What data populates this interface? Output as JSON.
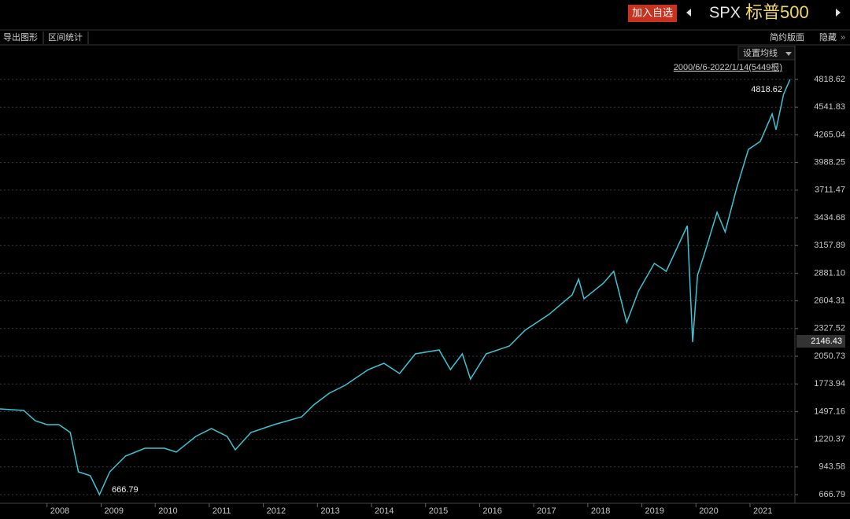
{
  "header": {
    "add_button": "加入自选",
    "symbol": "SPX",
    "name": "标普500"
  },
  "toolbar": {
    "left": [
      "导出图形",
      "区间统计"
    ],
    "right": [
      "简约版面",
      "隐藏"
    ]
  },
  "chart_data": {
    "type": "line",
    "ma_setting": "设置均线",
    "range_label": "2000/6/6-2022/1/14(5449根)",
    "max_label": "4818.62",
    "min_label": "666.79",
    "last_price_label": "2146.43",
    "series_color": "#38c6d6",
    "grid": true,
    "x": [
      2007.13,
      2007.57,
      2007.78,
      2008.0,
      2008.22,
      2008.43,
      2008.58,
      2008.8,
      2008.97,
      2009.16,
      2009.45,
      2009.81,
      2010.17,
      2010.39,
      2010.75,
      2011.04,
      2011.33,
      2011.48,
      2011.77,
      2012.2,
      2012.71,
      2012.93,
      2013.22,
      2013.51,
      2013.94,
      2014.23,
      2014.52,
      2014.81,
      2015.25,
      2015.46,
      2015.68,
      2015.83,
      2016.12,
      2016.55,
      2016.84,
      2017.28,
      2017.71,
      2017.83,
      2017.93,
      2018.29,
      2018.48,
      2018.72,
      2018.94,
      2019.23,
      2019.45,
      2019.84,
      2019.94,
      2020.03,
      2020.17,
      2020.39,
      2020.54,
      2020.75,
      2020.97,
      2021.19,
      2021.41,
      2021.48,
      2021.62,
      2021.74
    ],
    "values": [
      1524,
      1508,
      1406,
      1367,
      1367,
      1288,
      895,
      856,
      666.79,
      895,
      1052,
      1131,
      1131,
      1092,
      1249,
      1327,
      1249,
      1115,
      1288,
      1367,
      1445,
      1563,
      1681,
      1760,
      1917,
      1980,
      1878,
      2074,
      2114,
      1917,
      2074,
      1823,
      2074,
      2153,
      2310,
      2468,
      2664,
      2821,
      2625,
      2782,
      2900,
      2389,
      2704,
      2979,
      2900,
      3356,
      2192,
      2861,
      3097,
      3490,
      3293,
      3726,
      4119,
      4198,
      4473,
      4315,
      4669,
      4818.62
    ],
    "xlim": [
      2007.13,
      2021.83
    ],
    "xticks": [
      2008,
      2009,
      2010,
      2011,
      2012,
      2013,
      2014,
      2015,
      2016,
      2017,
      2018,
      2019,
      2020,
      2021
    ],
    "ylim": [
      580.3,
      5156.7
    ],
    "yticks": [
      666.79,
      943.58,
      1220.37,
      1497.16,
      1773.94,
      2050.73,
      2327.52,
      2604.31,
      {
        "value": 2881.1,
        "label": "2881.10"
      },
      3157.89,
      3434.68,
      3711.47,
      3988.25,
      4265.04,
      4541.83,
      4818.62
    ]
  }
}
